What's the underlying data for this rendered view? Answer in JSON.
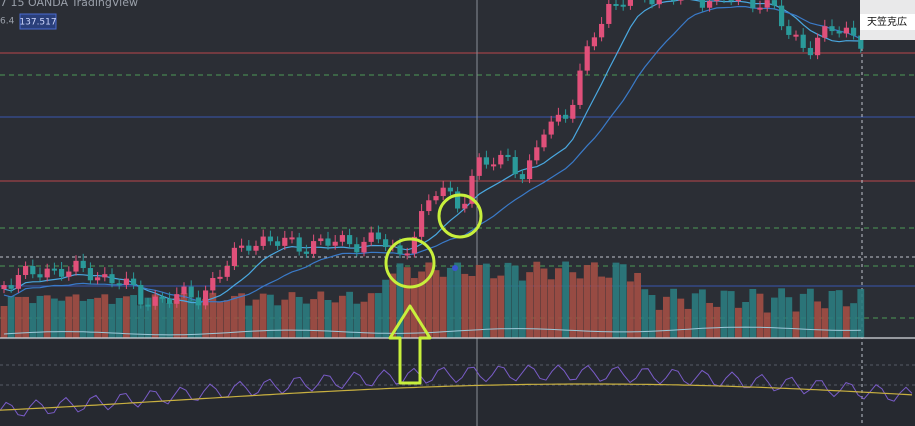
{
  "header": {
    "symbol_info": "7  15  OANDA  TradingView",
    "value_left": "6.4",
    "price_tag": "137.517"
  },
  "watermark": {
    "name": "天笠克広"
  }
}
